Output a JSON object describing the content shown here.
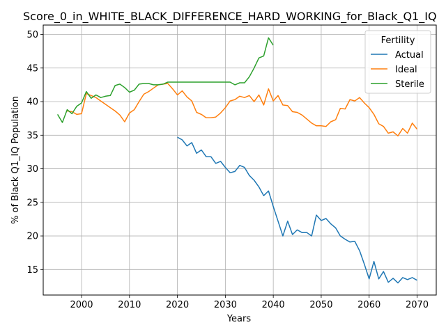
{
  "chart_data": {
    "type": "line",
    "title": "Score_0_in_WHITE_BLACK_DIFFERENCE_HARD_WORKING_for_Black_Q1_IQ",
    "xlabel": "Years",
    "ylabel": "% of Black Q1_IQ Population",
    "xlim": [
      1992,
      2074
    ],
    "ylim": [
      11.2,
      51.4
    ],
    "xticks": [
      2000,
      2010,
      2020,
      2030,
      2040,
      2050,
      2060,
      2070
    ],
    "yticks": [
      15,
      20,
      25,
      30,
      35,
      40,
      45,
      50
    ],
    "grid": true,
    "legend": {
      "title": "Fertility",
      "placement": "top-right"
    },
    "series": [
      {
        "name": "Actual",
        "color": "#1f77b4",
        "x": [
          2020,
          2021,
          2022,
          2023,
          2024,
          2025,
          2026,
          2027,
          2028,
          2029,
          2030,
          2031,
          2032,
          2033,
          2034,
          2035,
          2036,
          2037,
          2038,
          2039,
          2040,
          2041,
          2042,
          2043,
          2044,
          2045,
          2046,
          2047,
          2048,
          2049,
          2050,
          2051,
          2052,
          2053,
          2054,
          2055,
          2056,
          2057,
          2058,
          2059,
          2060,
          2061,
          2062,
          2063,
          2064,
          2065,
          2066,
          2067,
          2068,
          2069,
          2070
        ],
        "y": [
          34.7,
          34.3,
          33.4,
          33.9,
          32.3,
          32.8,
          31.8,
          31.8,
          30.8,
          31.1,
          30.2,
          29.4,
          29.6,
          30.5,
          30.2,
          29.0,
          28.3,
          27.3,
          26.0,
          26.7,
          24.4,
          22.2,
          20.0,
          22.2,
          20.2,
          20.9,
          20.5,
          20.5,
          20.0,
          23.1,
          22.3,
          22.6,
          21.8,
          21.2,
          20.0,
          19.5,
          19.1,
          19.2,
          17.8,
          15.8,
          13.6,
          16.2,
          13.6,
          14.7,
          13.1,
          13.7,
          13.0,
          13.8,
          13.5,
          13.8,
          13.4
        ]
      },
      {
        "name": "Ideal",
        "color": "#ff7f0e",
        "x": [
          1997,
          1998,
          1999,
          2000,
          2001,
          2002,
          2003,
          2004,
          2005,
          2006,
          2007,
          2008,
          2009,
          2010,
          2011,
          2012,
          2013,
          2014,
          2015,
          2016,
          2017,
          2018,
          2019,
          2020,
          2021,
          2022,
          2023,
          2024,
          2025,
          2026,
          2027,
          2028,
          2029,
          2030,
          2031,
          2032,
          2033,
          2034,
          2035,
          2036,
          2037,
          2038,
          2039,
          2040,
          2041,
          2042,
          2043,
          2044,
          2045,
          2046,
          2047,
          2048,
          2049,
          2050,
          2051,
          2052,
          2053,
          2054,
          2055,
          2056,
          2057,
          2058,
          2059,
          2060,
          2061,
          2062,
          2063,
          2064,
          2065,
          2066,
          2067,
          2068,
          2069,
          2070
        ],
        "y": [
          38.6,
          38.5,
          38.1,
          38.2,
          41.2,
          40.9,
          40.6,
          40.1,
          39.6,
          39.1,
          38.6,
          38.0,
          37.0,
          38.3,
          38.8,
          40.0,
          41.1,
          41.5,
          42.0,
          42.5,
          42.6,
          42.7,
          41.9,
          41.0,
          41.6,
          40.7,
          40.1,
          38.4,
          38.1,
          37.6,
          37.6,
          37.7,
          38.3,
          39.1,
          40.1,
          40.3,
          40.8,
          40.6,
          40.9,
          40.0,
          41.0,
          39.5,
          41.9,
          40.1,
          40.9,
          39.5,
          39.4,
          38.5,
          38.4,
          38.0,
          37.4,
          36.8,
          36.4,
          36.4,
          36.3,
          37.0,
          37.3,
          39.0,
          38.9,
          40.3,
          40.1,
          40.6,
          39.8,
          39.1,
          38.1,
          36.7,
          36.3,
          35.3,
          35.5,
          34.9,
          36.0,
          35.3,
          36.8,
          35.9
        ]
      },
      {
        "name": "Sterile",
        "color": "#2ca02c",
        "x": [
          1995,
          1996,
          1997,
          1998,
          1999,
          2000,
          2001,
          2002,
          2003,
          2004,
          2005,
          2006,
          2007,
          2008,
          2009,
          2010,
          2011,
          2012,
          2013,
          2014,
          2015,
          2016,
          2017,
          2018,
          2019,
          2020,
          2021,
          2022,
          2023,
          2024,
          2025,
          2026,
          2027,
          2028,
          2029,
          2030,
          2031,
          2032,
          2033,
          2034,
          2035,
          2036,
          2037,
          2038,
          2039,
          2040
        ],
        "y": [
          38.1,
          36.9,
          38.8,
          38.2,
          39.3,
          39.8,
          41.5,
          40.5,
          41.0,
          40.6,
          40.8,
          40.9,
          42.4,
          42.6,
          42.1,
          41.4,
          41.7,
          42.6,
          42.7,
          42.7,
          42.5,
          42.5,
          42.6,
          42.9,
          42.9,
          42.9,
          42.9,
          42.9,
          42.9,
          42.9,
          42.9,
          42.9,
          42.9,
          42.9,
          42.9,
          42.9,
          42.9,
          42.5,
          42.8,
          42.8,
          43.7,
          45.0,
          46.5,
          46.8,
          49.5,
          48.4
        ]
      }
    ]
  }
}
